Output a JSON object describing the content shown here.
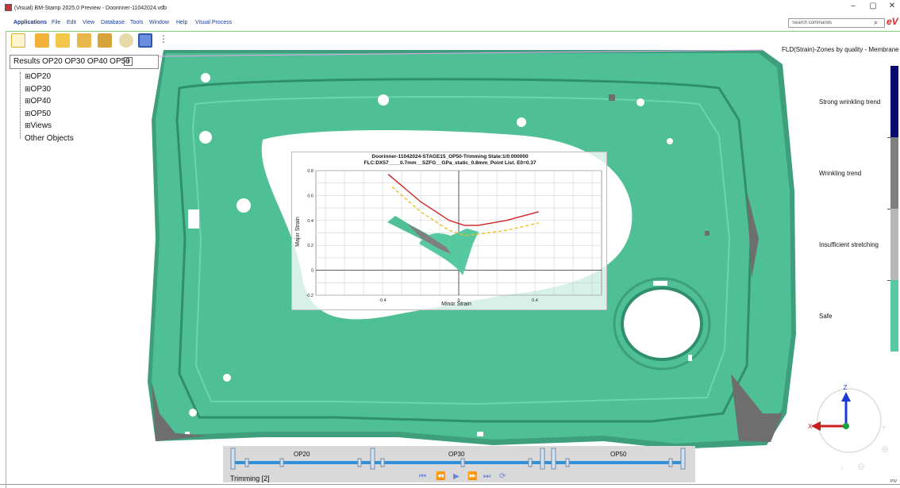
{
  "window": {
    "title": "(Visual) BM-Stamp 2025.0 Preview - Doorinner-11042024.vdb",
    "controls": [
      "–",
      "▢",
      "✕"
    ]
  },
  "menu": [
    "Applications",
    "File",
    "Edit",
    "View",
    "Database",
    "Tools",
    "Window",
    "Help",
    "Visual Process"
  ],
  "command_search": {
    "placeholder": "Search commands"
  },
  "logo_text": "eV",
  "toolbar_icons": [
    "import-icon",
    "export-icon",
    "grid-icon",
    "compare-icon",
    "layers-icon",
    "settings-warning-icon",
    "fld-plot-icon",
    "more-icon"
  ],
  "results": {
    "label": "Results OP20 OP30 OP40 OP50",
    "add": "+"
  },
  "tree": [
    {
      "expander": "⊞",
      "label": "OP20"
    },
    {
      "expander": "⊞",
      "label": "OP30"
    },
    {
      "expander": "⊞",
      "label": "OP40"
    },
    {
      "expander": "⊞",
      "label": "OP50"
    },
    {
      "expander": "⊞",
      "label": "Views"
    },
    {
      "expander": "",
      "label": "Other Objects"
    }
  ],
  "legend": {
    "title": "FLD(Strain)-Zones by quality - Membrane",
    "zones": [
      {
        "label": "Strong wrinkling trend",
        "color": "#0a0a6e"
      },
      {
        "label": "Wrinkling trend",
        "color": "#7f7f7f"
      },
      {
        "label": "Insufficient stretching",
        "color": "#b8b8b8"
      },
      {
        "label": "Safe",
        "color": "#56c9a0"
      }
    ]
  },
  "colors": {
    "part": "#4fbf95",
    "part_shadow": "#2f8f6c",
    "wrinkle": "#6e6e6e",
    "flc": "#d42020",
    "safety": "#e8c21f"
  },
  "fld": {
    "title_line1": "Doorinner-11042024-STAGE15_OP50-Trimming   State:1/0.000000",
    "title_line2": "FLC:DX57____0.7mm__SZFG__GPa_static_0.8mm_Point List. E0=0.37",
    "xlabel": "Minor Strain",
    "ylabel": "Major Strain",
    "x_ticks": [
      "-0.4",
      "0",
      "0.4"
    ],
    "y_ticks": [
      "0.8",
      "0.6",
      "0.4",
      "0.2",
      "0",
      "-0.2"
    ]
  },
  "chart_data": {
    "type": "line",
    "xlabel": "Minor Strain",
    "ylabel": "Major Strain",
    "xlim": [
      -0.75,
      0.75
    ],
    "ylim": [
      -0.2,
      0.8
    ],
    "series": [
      {
        "values": [
          [
            -0.37,
            0.77
          ],
          [
            -0.2,
            0.55
          ],
          [
            -0.05,
            0.4
          ],
          [
            0.03,
            0.36
          ],
          [
            0.1,
            0.36
          ],
          [
            0.25,
            0.4
          ],
          [
            0.42,
            0.47
          ]
        ],
        "color": "#d42020"
      },
      {
        "values": [
          [
            -0.35,
            0.67
          ],
          [
            -0.2,
            0.47
          ],
          [
            -0.05,
            0.32
          ],
          [
            0.03,
            0.28
          ],
          [
            0.1,
            0.29
          ],
          [
            0.25,
            0.32
          ],
          [
            0.42,
            0.38
          ]
        ],
        "color": "#e8c21f",
        "dashed": true
      }
    ]
  },
  "timeline": {
    "status": "Trimming [2]",
    "stages": [
      "OP20",
      "OP30",
      "OP50"
    ],
    "buttons": [
      "first-icon",
      "prev-icon",
      "play-icon",
      "next-icon",
      "last-icon",
      "loop-icon"
    ]
  },
  "triad": {
    "x": "X",
    "z": "Z"
  },
  "corner_label": "PIV"
}
